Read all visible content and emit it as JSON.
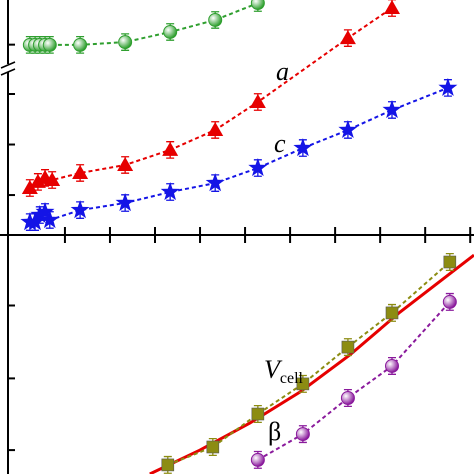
{
  "chart_data": [
    {
      "type": "line",
      "xlim": [
        0,
        10
      ],
      "ylim": [
        0,
        10
      ],
      "xticks": [
        1.37,
        2.32,
        3.27,
        4.22,
        5.17,
        6.12,
        7.07,
        8.02,
        8.97,
        9.92
      ],
      "yticks": [
        1.7,
        3.85,
        6.0,
        8.1
      ],
      "axis_break": true,
      "annotations": [
        {
          "text": "a"
        },
        {
          "text": "c"
        }
      ],
      "series": [
        {
          "color": "#2f9f2f",
          "marker": "sphere",
          "line": "dashed",
          "error": 0.35,
          "x": [
            0.63,
            0.74,
            0.84,
            0.95,
            1.05,
            1.69,
            2.64,
            3.59,
            4.54,
            5.44
          ],
          "values": [
            8.09,
            8.09,
            8.09,
            8.09,
            8.09,
            8.09,
            8.21,
            8.64,
            9.15,
            9.87
          ]
        },
        {
          "color": "#e60000",
          "marker": "triangle",
          "line": "dashed",
          "error": 0.35,
          "x": [
            0.63,
            0.8,
            0.95,
            1.1,
            1.69,
            2.64,
            3.59,
            4.54,
            5.44,
            7.34,
            8.27
          ],
          "values": [
            2.0,
            2.26,
            2.43,
            2.34,
            2.64,
            2.98,
            3.62,
            4.47,
            5.66,
            8.38,
            9.66
          ]
        },
        {
          "color": "#1414e6",
          "marker": "star",
          "line": "dashed",
          "error": 0.35,
          "x": [
            0.63,
            0.74,
            0.84,
            0.95,
            1.05,
            1.69,
            2.64,
            3.59,
            4.54,
            5.44,
            6.39,
            7.34,
            8.27,
            9.45
          ],
          "values": [
            0.55,
            0.55,
            0.85,
            0.98,
            0.64,
            1.06,
            1.36,
            1.83,
            2.21,
            2.85,
            3.7,
            4.47,
            5.32,
            6.26
          ]
        }
      ]
    },
    {
      "type": "line",
      "xlim": [
        0,
        10
      ],
      "ylim": [
        0,
        10
      ],
      "xticks": [
        1.37,
        2.32,
        3.27,
        4.22,
        5.17,
        6.12,
        7.07,
        8.02,
        8.97,
        9.92
      ],
      "yticks": [
        1.0,
        4.0,
        7.05
      ],
      "annotations": [
        {
          "text": "V",
          "sub": "cell"
        },
        {
          "text": "β"
        }
      ],
      "series": [
        {
          "color": "#e60000",
          "marker": "none",
          "line": "solid",
          "x": [
            3.16,
            4.22,
            5.27,
            6.33,
            7.38,
            8.44,
            10
          ],
          "values": [
            0,
            1.0,
            2.13,
            3.43,
            4.98,
            6.78,
            9.16
          ]
        },
        {
          "color": "#8c8c12",
          "marker": "square",
          "line": "dashed",
          "error": 0.35,
          "x": [
            3.54,
            4.49,
            5.44,
            6.39,
            7.34,
            8.27,
            9.49
          ],
          "values": [
            0.38,
            1.13,
            2.51,
            3.77,
            5.31,
            6.74,
            8.87
          ]
        },
        {
          "color": "#8a1a9c",
          "marker": "sphere",
          "line": "dashed",
          "error": 0.35,
          "x": [
            5.44,
            6.39,
            7.34,
            8.27,
            9.49
          ],
          "values": [
            0.59,
            1.67,
            3.18,
            4.52,
            7.2
          ]
        }
      ]
    }
  ]
}
